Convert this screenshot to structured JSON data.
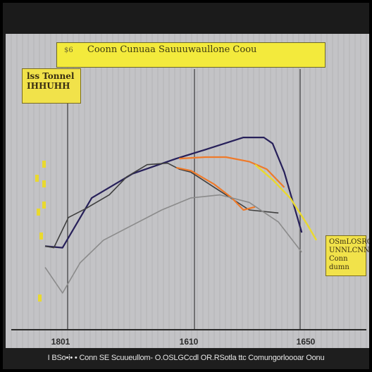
{
  "caption": "I BSo•i• • Conn SE Scuueullom- O.OSLGCcdl OR.RSotla ttc Comungorloooar Oonu",
  "title_box": {
    "number": "$6",
    "text": "Coonn Cunuaa Sauuuwaullone  Coou"
  },
  "side_label": {
    "line1": "lss Tonnel",
    "line2": "IHHUHH"
  },
  "right_label": {
    "line1": "OSmLOSRO",
    "line2": "UNNLCNN",
    "line3": "Conn dumn"
  },
  "colors": {
    "plot_bg": "#c3c3c6",
    "navy": "#27205a",
    "dark_gray": "#3f3f3f",
    "orange": "#ef7a2a",
    "light_gray": "#8b8b8b",
    "yellow": "#e9d92f",
    "grid": "#a9a9ad"
  },
  "chart_data": {
    "type": "line",
    "x_ticks": [
      "1801",
      "1610",
      "1650"
    ],
    "series": [
      {
        "key": "navy",
        "points": [
          [
            0,
            6
          ],
          [
            0.06,
            5
          ],
          [
            0.16,
            38
          ],
          [
            0.3,
            54
          ],
          [
            0.45,
            64
          ],
          [
            0.55,
            70
          ],
          [
            0.68,
            78
          ],
          [
            0.75,
            78
          ],
          [
            0.78,
            74
          ],
          [
            0.82,
            55
          ],
          [
            0.85,
            35
          ],
          [
            0.88,
            15
          ]
        ]
      },
      {
        "key": "dark_gray",
        "points": [
          [
            0,
            6
          ],
          [
            0.03,
            5
          ],
          [
            0.08,
            25
          ],
          [
            0.14,
            31
          ],
          [
            0.22,
            40
          ],
          [
            0.28,
            52
          ],
          [
            0.35,
            60
          ],
          [
            0.42,
            61
          ],
          [
            0.46,
            57
          ],
          [
            0.5,
            55
          ],
          [
            0.58,
            45
          ],
          [
            0.7,
            30
          ],
          [
            0.8,
            28
          ]
        ]
      },
      {
        "key": "orange_upper",
        "points": [
          [
            0.46,
            64
          ],
          [
            0.55,
            65
          ],
          [
            0.62,
            65
          ],
          [
            0.7,
            62
          ],
          [
            0.76,
            57
          ],
          [
            0.82,
            45
          ]
        ]
      },
      {
        "key": "orange_lower",
        "points": [
          [
            0.45,
            58
          ],
          [
            0.5,
            56
          ],
          [
            0.58,
            47
          ],
          [
            0.64,
            38
          ],
          [
            0.68,
            30
          ],
          [
            0.72,
            32
          ]
        ]
      },
      {
        "key": "light_gray",
        "points": [
          [
            0,
            -8
          ],
          [
            0.06,
            -25
          ],
          [
            0.12,
            -5
          ],
          [
            0.2,
            10
          ],
          [
            0.3,
            20
          ],
          [
            0.4,
            30
          ],
          [
            0.5,
            38
          ],
          [
            0.6,
            40
          ],
          [
            0.7,
            35
          ],
          [
            0.8,
            22
          ],
          [
            0.88,
            2
          ]
        ]
      },
      {
        "key": "yellow",
        "points": [
          [
            0.72,
            60
          ],
          [
            0.78,
            50
          ],
          [
            0.84,
            38
          ],
          [
            0.9,
            20
          ],
          [
            0.93,
            10
          ]
        ]
      }
    ]
  }
}
